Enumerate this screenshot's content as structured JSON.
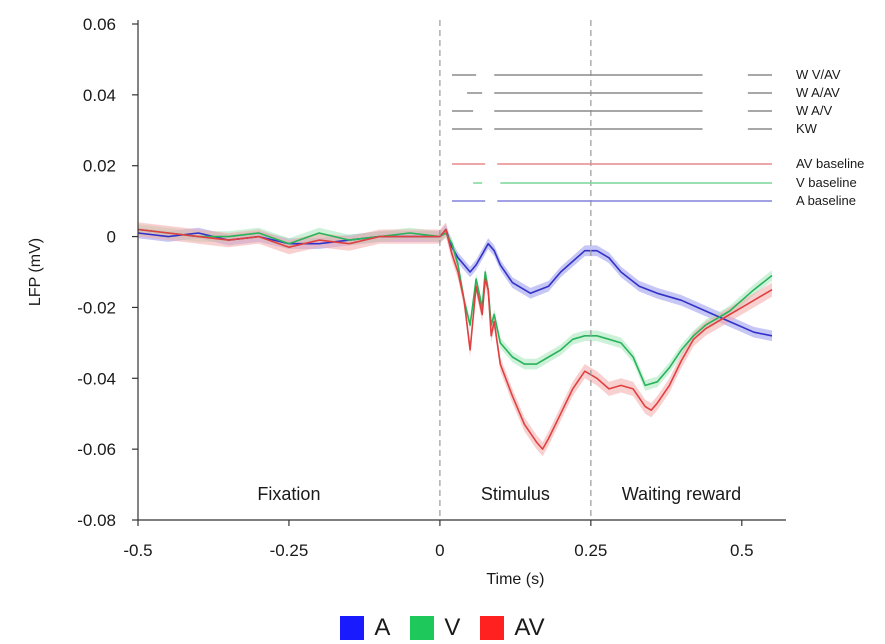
{
  "chart_data": {
    "type": "line",
    "xlabel": "Time (s)",
    "ylabel": "LFP (mV)",
    "xlim": [
      -0.5,
      0.55
    ],
    "ylim": [
      -0.08,
      0.06
    ],
    "xticks": [
      -0.5,
      -0.25,
      0,
      0.25,
      0.5
    ],
    "xtick_labels": [
      "-0.5",
      "-0.25",
      "0",
      "0.25",
      "0.5"
    ],
    "yticks": [
      0.06,
      0.04,
      0.02,
      0,
      -0.02,
      -0.04,
      -0.06,
      -0.08
    ],
    "ytick_labels": [
      "0.06",
      "0.04",
      "0.02",
      "0",
      "-0.02",
      "-0.04",
      "-0.06",
      "-0.08"
    ],
    "grid": false,
    "event_lines": [
      0,
      0.25
    ],
    "phase_labels": [
      {
        "label": "Fixation",
        "x": -0.25
      },
      {
        "label": "Stimulus",
        "x": 0.125
      },
      {
        "label": "Waiting reward",
        "x": 0.4
      }
    ],
    "series": [
      {
        "name": "A",
        "color": "#3232c8",
        "band_color": "#9999ee",
        "x": [
          -0.5,
          -0.45,
          -0.4,
          -0.35,
          -0.3,
          -0.25,
          -0.2,
          -0.15,
          -0.1,
          -0.05,
          0,
          0.01,
          0.02,
          0.03,
          0.04,
          0.05,
          0.06,
          0.07,
          0.08,
          0.09,
          0.1,
          0.12,
          0.15,
          0.18,
          0.2,
          0.22,
          0.24,
          0.26,
          0.28,
          0.3,
          0.33,
          0.36,
          0.4,
          0.44,
          0.48,
          0.52,
          0.55
        ],
        "values": [
          0.001,
          0.0,
          0.001,
          -0.001,
          0.0,
          -0.002,
          -0.002,
          -0.001,
          0.0,
          0.0,
          0.0,
          0.002,
          -0.003,
          -0.006,
          -0.008,
          -0.01,
          -0.008,
          -0.005,
          -0.002,
          -0.004,
          -0.008,
          -0.013,
          -0.016,
          -0.014,
          -0.01,
          -0.007,
          -0.004,
          -0.004,
          -0.006,
          -0.01,
          -0.014,
          -0.016,
          -0.018,
          -0.021,
          -0.024,
          -0.027,
          -0.028
        ],
        "band": 0.0015
      },
      {
        "name": "V",
        "color": "#28b45a",
        "band_color": "#a6e6bc",
        "x": [
          -0.5,
          -0.45,
          -0.4,
          -0.35,
          -0.3,
          -0.25,
          -0.2,
          -0.15,
          -0.1,
          -0.05,
          0,
          0.01,
          0.02,
          0.03,
          0.04,
          0.05,
          0.06,
          0.07,
          0.075,
          0.08,
          0.085,
          0.09,
          0.1,
          0.12,
          0.14,
          0.16,
          0.18,
          0.2,
          0.22,
          0.24,
          0.26,
          0.28,
          0.3,
          0.32,
          0.34,
          0.36,
          0.38,
          0.4,
          0.42,
          0.44,
          0.46,
          0.48,
          0.5,
          0.52,
          0.55
        ],
        "values": [
          0.002,
          0.001,
          0.0,
          0.0,
          0.001,
          -0.002,
          0.001,
          -0.001,
          0.0,
          0.001,
          0.0,
          0.001,
          -0.002,
          -0.008,
          -0.018,
          -0.025,
          -0.012,
          -0.02,
          -0.01,
          -0.015,
          -0.025,
          -0.022,
          -0.03,
          -0.034,
          -0.036,
          -0.036,
          -0.034,
          -0.032,
          -0.029,
          -0.028,
          -0.028,
          -0.029,
          -0.03,
          -0.034,
          -0.042,
          -0.041,
          -0.037,
          -0.032,
          -0.028,
          -0.025,
          -0.023,
          -0.021,
          -0.018,
          -0.015,
          -0.011
        ],
        "band": 0.0015
      },
      {
        "name": "AV",
        "color": "#e04040",
        "band_color": "#f4aaaa",
        "x": [
          -0.5,
          -0.45,
          -0.4,
          -0.35,
          -0.3,
          -0.25,
          -0.2,
          -0.15,
          -0.1,
          -0.05,
          0,
          0.01,
          0.02,
          0.03,
          0.04,
          0.05,
          0.06,
          0.07,
          0.075,
          0.08,
          0.085,
          0.09,
          0.1,
          0.12,
          0.14,
          0.16,
          0.17,
          0.18,
          0.2,
          0.22,
          0.24,
          0.26,
          0.28,
          0.3,
          0.32,
          0.34,
          0.35,
          0.36,
          0.38,
          0.4,
          0.42,
          0.44,
          0.46,
          0.48,
          0.5,
          0.52,
          0.55
        ],
        "values": [
          0.002,
          0.001,
          0.0,
          -0.001,
          0.0,
          -0.003,
          -0.001,
          -0.002,
          0.0,
          0.0,
          0.0,
          0.002,
          -0.005,
          -0.01,
          -0.018,
          -0.032,
          -0.014,
          -0.022,
          -0.012,
          -0.015,
          -0.028,
          -0.024,
          -0.036,
          -0.045,
          -0.053,
          -0.058,
          -0.06,
          -0.057,
          -0.05,
          -0.043,
          -0.038,
          -0.04,
          -0.043,
          -0.042,
          -0.043,
          -0.048,
          -0.049,
          -0.047,
          -0.042,
          -0.035,
          -0.029,
          -0.026,
          -0.024,
          -0.022,
          -0.02,
          -0.018,
          -0.015
        ],
        "band": 0.002
      }
    ],
    "significance_rows": [
      {
        "label": "W V/AV",
        "color": "#8a8a8a",
        "segments": [
          [
            0.02,
            0.06
          ],
          [
            0.09,
            0.435
          ],
          [
            0.51,
            0.55
          ]
        ]
      },
      {
        "label": "W A/AV",
        "color": "#8a8a8a",
        "segments": [
          [
            0.045,
            0.07
          ],
          [
            0.09,
            0.435
          ],
          [
            0.51,
            0.55
          ]
        ]
      },
      {
        "label": "W A/V",
        "color": "#8a8a8a",
        "segments": [
          [
            0.02,
            0.055
          ],
          [
            0.09,
            0.435
          ],
          [
            0.51,
            0.55
          ]
        ]
      },
      {
        "label": "KW",
        "color": "#8a8a8a",
        "segments": [
          [
            0.02,
            0.07
          ],
          [
            0.09,
            0.435
          ],
          [
            0.51,
            0.55
          ]
        ]
      },
      {
        "label": "AV baseline",
        "color": "#e88888",
        "segments": [
          [
            0.02,
            0.075
          ],
          [
            0.095,
            0.55
          ]
        ]
      },
      {
        "label": "V baseline",
        "color": "#7ad69a",
        "segments": [
          [
            0.055,
            0.07
          ],
          [
            0.1,
            0.55
          ]
        ]
      },
      {
        "label": "A baseline",
        "color": "#8282dc",
        "segments": [
          [
            0.02,
            0.075
          ],
          [
            0.095,
            0.55
          ]
        ]
      }
    ],
    "legend": {
      "placement": "bottom-center",
      "items": [
        {
          "label": "A",
          "color": "#1a1aff"
        },
        {
          "label": "V",
          "color": "#1ec85a"
        },
        {
          "label": "AV",
          "color": "#ff2020"
        }
      ]
    }
  }
}
